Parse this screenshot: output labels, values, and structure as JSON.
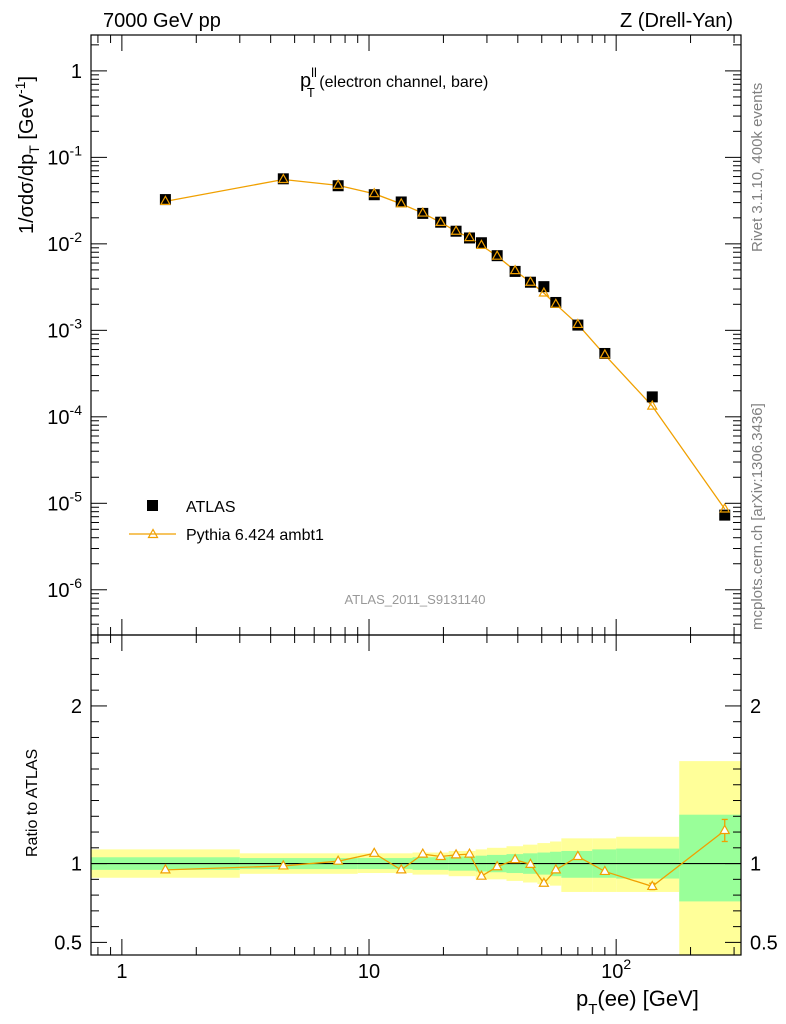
{
  "header": {
    "left": "7000 GeV pp",
    "right": "Z (Drell-Yan)"
  },
  "side_notes": {
    "rivet": "Rivet 3.1.10,  400k events",
    "mcplots": "mcplots.cern.ch [arXiv:1306.3436]"
  },
  "analysis_id": "ATLAS_2011_S9131140",
  "colors": {
    "data": "#000000",
    "mc": "#f0a000",
    "band_inner": "#99ff99",
    "band_outer": "#ffff99"
  },
  "chart_data": [
    {
      "type": "scatter",
      "title_main": "p",
      "title_sup": "ll",
      "title_sub": "T",
      "title_rest": " (electron channel, bare)",
      "ylabel_main": "1/σdσ/dp",
      "ylabel_sub": "T",
      "ylabel_unit": " [GeV",
      "ylabel_sup": "-1",
      "ylabel_close": "]",
      "xscale": "log",
      "yscale": "log",
      "xlim": [
        0.75,
        320
      ],
      "ylim": [
        3e-07,
        2.6
      ],
      "yticks": [
        {
          "value": 1,
          "label": "1",
          "exp": ""
        },
        {
          "value": 0.1,
          "label": "10",
          "exp": "-1"
        },
        {
          "value": 0.01,
          "label": "10",
          "exp": "-2"
        },
        {
          "value": 0.001,
          "label": "10",
          "exp": "-3"
        },
        {
          "value": 0.0001,
          "label": "10",
          "exp": "-4"
        },
        {
          "value": 1e-05,
          "label": "10",
          "exp": "-5"
        },
        {
          "value": 1e-06,
          "label": "10",
          "exp": "-6"
        }
      ],
      "legend_position": "bottom-left",
      "series": [
        {
          "name": "ATLAS",
          "marker": "square",
          "x": [
            1.5,
            4.5,
            7.5,
            10.5,
            13.5,
            16.5,
            19.5,
            22.5,
            25.5,
            28.5,
            33,
            39,
            45,
            51,
            57,
            70,
            90,
            140,
            275
          ],
          "y": [
            0.0325,
            0.0565,
            0.047,
            0.037,
            0.0305,
            0.0225,
            0.0178,
            0.014,
            0.0117,
            0.0103,
            0.0073,
            0.0048,
            0.0036,
            0.0032,
            0.0021,
            0.00115,
            0.00054,
            0.00017,
            7.3e-06
          ]
        },
        {
          "name": "Pythia 6.424 ambt1",
          "marker": "triangle",
          "x": [
            1.5,
            4.5,
            7.5,
            10.5,
            13.5,
            16.5,
            19.5,
            22.5,
            25.5,
            28.5,
            33,
            39,
            45,
            51,
            57,
            70,
            90,
            140,
            275
          ],
          "y": [
            0.031,
            0.0555,
            0.0475,
            0.038,
            0.029,
            0.0227,
            0.0177,
            0.014,
            0.0118,
            0.0096,
            0.0072,
            0.0049,
            0.0036,
            0.0027,
            0.002,
            0.00117,
            0.00052,
            0.000133,
            8.6e-06
          ]
        }
      ]
    },
    {
      "type": "line",
      "ylabel": "Ratio to ATLAS",
      "xlabel_main": "p",
      "xlabel_sub": "T",
      "xlabel_rest": "(ee) [GeV]",
      "xscale": "log",
      "xlim": [
        0.75,
        320
      ],
      "ylim": [
        0.42,
        2.45
      ],
      "xticks": [
        {
          "value": 1,
          "label": "1",
          "exp": ""
        },
        {
          "value": 10,
          "label": "10",
          "exp": ""
        },
        {
          "value": 100,
          "label": "10",
          "exp": "2"
        }
      ],
      "yticks": [
        {
          "value": 0.5,
          "label": "0.5"
        },
        {
          "value": 1,
          "label": "1"
        },
        {
          "value": 2,
          "label": "2"
        }
      ],
      "reference_line": 1,
      "uncertainty_bands": [
        {
          "xlo": 0.75,
          "xhi": 3,
          "inner": [
            0.96,
            1.04
          ],
          "outer": [
            0.91,
            1.09
          ]
        },
        {
          "xlo": 3,
          "xhi": 9,
          "inner": [
            0.965,
            1.035
          ],
          "outer": [
            0.935,
            1.065
          ]
        },
        {
          "xlo": 9,
          "xhi": 15,
          "inner": [
            0.965,
            1.035
          ],
          "outer": [
            0.94,
            1.065
          ]
        },
        {
          "xlo": 15,
          "xhi": 21,
          "inner": [
            0.96,
            1.04
          ],
          "outer": [
            0.93,
            1.07
          ]
        },
        {
          "xlo": 21,
          "xhi": 27,
          "inner": [
            0.955,
            1.045
          ],
          "outer": [
            0.92,
            1.08
          ]
        },
        {
          "xlo": 27,
          "xhi": 30,
          "inner": [
            0.95,
            1.05
          ],
          "outer": [
            0.9,
            1.09
          ]
        },
        {
          "xlo": 30,
          "xhi": 36,
          "inner": [
            0.945,
            1.055
          ],
          "outer": [
            0.9,
            1.1
          ]
        },
        {
          "xlo": 36,
          "xhi": 42,
          "inner": [
            0.94,
            1.06
          ],
          "outer": [
            0.89,
            1.11
          ]
        },
        {
          "xlo": 42,
          "xhi": 48,
          "inner": [
            0.935,
            1.065
          ],
          "outer": [
            0.88,
            1.12
          ]
        },
        {
          "xlo": 48,
          "xhi": 54,
          "inner": [
            0.93,
            1.07
          ],
          "outer": [
            0.87,
            1.13
          ]
        },
        {
          "xlo": 54,
          "xhi": 60,
          "inner": [
            0.92,
            1.075
          ],
          "outer": [
            0.86,
            1.14
          ]
        },
        {
          "xlo": 60,
          "xhi": 80,
          "inner": [
            0.91,
            1.08
          ],
          "outer": [
            0.82,
            1.16
          ]
        },
        {
          "xlo": 80,
          "xhi": 100,
          "inner": [
            0.91,
            1.09
          ],
          "outer": [
            0.82,
            1.16
          ]
        },
        {
          "xlo": 100,
          "xhi": 180,
          "inner": [
            0.905,
            1.095
          ],
          "outer": [
            0.82,
            1.17
          ]
        },
        {
          "xlo": 180,
          "xhi": 320,
          "inner": [
            0.76,
            1.31
          ],
          "outer": [
            0.39,
            1.65
          ]
        }
      ],
      "series": [
        {
          "name": "Pythia 6.424 ambt1",
          "x": [
            1.5,
            4.5,
            7.5,
            10.5,
            13.5,
            16.5,
            19.5,
            22.5,
            25.5,
            28.5,
            33,
            39,
            45,
            51,
            57,
            70,
            90,
            140,
            275
          ],
          "y": [
            0.96,
            0.985,
            1.015,
            1.065,
            0.96,
            1.06,
            1.045,
            1.055,
            1.06,
            0.92,
            0.98,
            1.025,
            0.995,
            0.875,
            0.96,
            1.045,
            0.95,
            0.855,
            1.21
          ],
          "yerr": [
            0,
            0,
            0,
            0,
            0,
            0,
            0,
            0,
            0,
            0,
            0,
            0,
            0,
            0,
            0,
            0,
            0,
            0.02,
            0.07
          ]
        }
      ]
    }
  ]
}
